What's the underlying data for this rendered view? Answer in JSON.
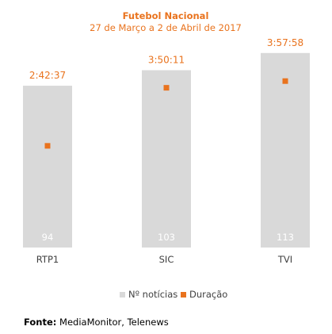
{
  "chart_data": {
    "type": "bar",
    "title": "Futebol Nacional",
    "subtitle": "27 de Março a 2 de Abril de 2017",
    "categories": [
      "RTP1",
      "SIC",
      "TVI"
    ],
    "series": [
      {
        "name": "Nº notícias",
        "kind": "bar",
        "values": [
          94,
          103,
          113
        ],
        "color": "#d9d9d9"
      },
      {
        "name": "Duração",
        "kind": "marker",
        "values": [
          "2:42:37",
          "3:50:11",
          "3:57:58"
        ],
        "color": "#e9731e"
      }
    ],
    "legend_position": "bottom",
    "grid": false
  },
  "source": {
    "label": "Fonte:",
    "text": "MediaMonitor, Telenews"
  },
  "colors": {
    "accent": "#e9731e",
    "bar": "#d9d9d9",
    "text": "#404040"
  }
}
